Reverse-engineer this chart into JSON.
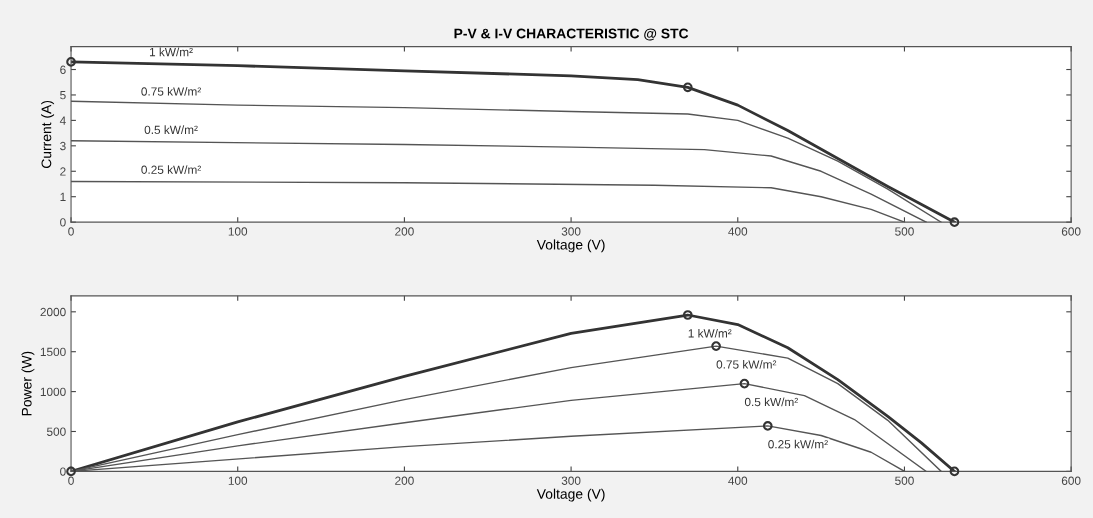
{
  "chart_data": [
    {
      "type": "line",
      "title": "P-V & I-V CHARACTERISTIC @ STC",
      "xlabel": "Voltage (V)",
      "ylabel": "Current (A)",
      "xlim": [
        0,
        600
      ],
      "xticks": [
        0,
        100,
        200,
        300,
        400,
        500,
        600
      ],
      "ylim": [
        0,
        6.9
      ],
      "yticks": [
        0,
        1,
        2,
        3,
        4,
        5,
        6
      ],
      "grid": false,
      "legend": false,
      "series": [
        {
          "name": "1 kW/m²",
          "color": "#333333",
          "x": [
            0,
            100,
            200,
            300,
            340,
            370,
            400,
            430,
            460,
            490,
            510,
            530
          ],
          "values": [
            6.3,
            6.15,
            5.95,
            5.75,
            5.6,
            5.3,
            4.6,
            3.6,
            2.5,
            1.4,
            0.7,
            0
          ]
        },
        {
          "name": "0.75 kW/m²",
          "color": "#555555",
          "x": [
            0,
            100,
            200,
            300,
            370,
            400,
            430,
            460,
            490,
            522
          ],
          "values": [
            4.75,
            4.6,
            4.5,
            4.35,
            4.25,
            4.0,
            3.3,
            2.4,
            1.3,
            0
          ]
        },
        {
          "name": "0.5 kW/m²",
          "color": "#555555",
          "x": [
            0,
            200,
            300,
            380,
            420,
            450,
            480,
            513
          ],
          "values": [
            3.2,
            3.05,
            2.95,
            2.85,
            2.6,
            2.0,
            1.1,
            0
          ]
        },
        {
          "name": "0.25 kW/m²",
          "color": "#555555",
          "x": [
            0,
            200,
            350,
            420,
            450,
            480,
            500
          ],
          "values": [
            1.6,
            1.55,
            1.45,
            1.35,
            1.0,
            0.5,
            0
          ]
        },
        {
          "type": "scatter",
          "marker": "circle",
          "color": "#333333",
          "x": [
            0,
            370,
            530
          ],
          "values": [
            6.3,
            5.3,
            0
          ]
        }
      ]
    },
    {
      "type": "line",
      "xlabel": "Voltage (V)",
      "ylabel": "Power (W)",
      "xlim": [
        0,
        600
      ],
      "xticks": [
        0,
        100,
        200,
        300,
        400,
        500,
        600
      ],
      "ylim": [
        0,
        2200
      ],
      "yticks": [
        0,
        500,
        1000,
        1500,
        2000
      ],
      "grid": false,
      "legend": false,
      "series": [
        {
          "name": "1 kW/m²",
          "color": "#333333",
          "x": [
            0,
            100,
            200,
            300,
            370,
            400,
            430,
            460,
            490,
            510,
            530
          ],
          "values": [
            0,
            620,
            1190,
            1730,
            1960,
            1840,
            1550,
            1150,
            690,
            360,
            0
          ]
        },
        {
          "name": "0.75 kW/m²",
          "color": "#555555",
          "x": [
            0,
            100,
            200,
            300,
            387,
            430,
            460,
            490,
            522
          ],
          "values": [
            0,
            460,
            900,
            1300,
            1570,
            1420,
            1100,
            640,
            0
          ]
        },
        {
          "name": "0.5 kW/m²",
          "color": "#555555",
          "x": [
            0,
            100,
            200,
            300,
            404,
            440,
            470,
            513
          ],
          "values": [
            0,
            320,
            610,
            890,
            1100,
            950,
            650,
            0
          ]
        },
        {
          "name": "0.25 kW/m²",
          "color": "#555555",
          "x": [
            0,
            200,
            300,
            418,
            450,
            480,
            500
          ],
          "values": [
            0,
            310,
            440,
            570,
            450,
            240,
            0
          ]
        },
        {
          "type": "scatter",
          "marker": "circle",
          "color": "#333333",
          "x": [
            0,
            370,
            530,
            387,
            404,
            418
          ],
          "values": [
            0,
            1960,
            0,
            1570,
            1100,
            570
          ]
        }
      ]
    }
  ]
}
